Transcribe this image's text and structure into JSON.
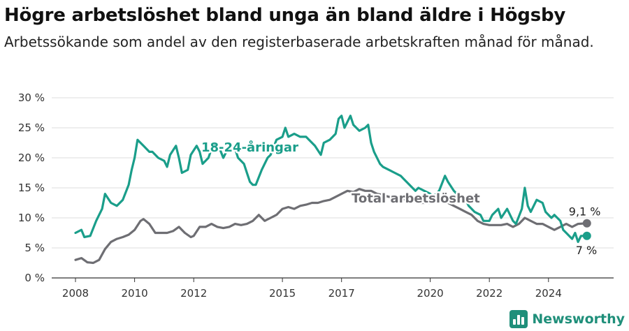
{
  "title": "Högre arbetslöshet bland unga än bland äldre i Högsby",
  "subtitle": "Arbetssökande som andel av den registerbaserade arbetskraften månad för månad.",
  "brand": {
    "name": "Newsworthy"
  },
  "colors": {
    "youth": "#1a9e8a",
    "total": "#6e6e73",
    "grid": "#dddddd",
    "axis": "#333333"
  },
  "chart_data": {
    "type": "line",
    "title": "Högre arbetslöshet bland unga än bland äldre i Högsby",
    "ylim": [
      0,
      30
    ],
    "xlim": [
      2008.0,
      2025.4
    ],
    "y_ticks": [
      0,
      5,
      10,
      15,
      20,
      25,
      30
    ],
    "y_tick_labels": [
      "0 %",
      "5 %",
      "10 %",
      "15 %",
      "20 %",
      "25 %",
      "30 %"
    ],
    "x_ticks": [
      2008,
      2010,
      2012,
      2015,
      2017,
      2020,
      2022,
      2024
    ],
    "x_tick_labels": [
      "2008",
      "2010",
      "2012",
      "2015",
      "2017",
      "2020",
      "2022",
      "2024"
    ],
    "grid": true,
    "series": [
      {
        "name": "18-24-åringar",
        "color": "#1a9e8a",
        "end_label": "7 %",
        "points": [
          [
            2008.0,
            7.5
          ],
          [
            2008.2,
            8.0
          ],
          [
            2008.3,
            6.8
          ],
          [
            2008.5,
            7.0
          ],
          [
            2008.7,
            9.5
          ],
          [
            2008.9,
            11.5
          ],
          [
            2009.0,
            14.0
          ],
          [
            2009.2,
            12.5
          ],
          [
            2009.4,
            12.0
          ],
          [
            2009.6,
            13.0
          ],
          [
            2009.8,
            15.5
          ],
          [
            2009.9,
            18.0
          ],
          [
            2010.0,
            20.0
          ],
          [
            2010.1,
            23.0
          ],
          [
            2010.3,
            22.0
          ],
          [
            2010.5,
            21.0
          ],
          [
            2010.6,
            21.0
          ],
          [
            2010.8,
            20.0
          ],
          [
            2011.0,
            19.5
          ],
          [
            2011.1,
            18.5
          ],
          [
            2011.2,
            20.5
          ],
          [
            2011.4,
            22.0
          ],
          [
            2011.5,
            20.0
          ],
          [
            2011.6,
            17.5
          ],
          [
            2011.8,
            18.0
          ],
          [
            2011.9,
            20.5
          ],
          [
            2012.1,
            22.0
          ],
          [
            2012.2,
            21.0
          ],
          [
            2012.3,
            19.0
          ],
          [
            2012.5,
            20.0
          ],
          [
            2012.6,
            21.5
          ],
          [
            2012.8,
            22.5
          ],
          [
            2013.0,
            20.0
          ],
          [
            2013.2,
            22.0
          ],
          [
            2013.4,
            21.5
          ],
          [
            2013.5,
            20.0
          ],
          [
            2013.7,
            19.0
          ],
          [
            2013.8,
            17.5
          ],
          [
            2013.9,
            16.0
          ],
          [
            2014.0,
            15.5
          ],
          [
            2014.1,
            15.5
          ],
          [
            2014.3,
            18.0
          ],
          [
            2014.5,
            20.0
          ],
          [
            2014.6,
            20.5
          ],
          [
            2014.8,
            23.0
          ],
          [
            2015.0,
            23.5
          ],
          [
            2015.1,
            25.0
          ],
          [
            2015.2,
            23.5
          ],
          [
            2015.4,
            24.0
          ],
          [
            2015.6,
            23.5
          ],
          [
            2015.8,
            23.5
          ],
          [
            2015.9,
            23.0
          ],
          [
            2016.1,
            22.0
          ],
          [
            2016.3,
            20.5
          ],
          [
            2016.4,
            22.5
          ],
          [
            2016.6,
            23.0
          ],
          [
            2016.8,
            24.0
          ],
          [
            2016.9,
            26.5
          ],
          [
            2017.0,
            27.0
          ],
          [
            2017.1,
            25.0
          ],
          [
            2017.3,
            27.0
          ],
          [
            2017.4,
            25.5
          ],
          [
            2017.6,
            24.5
          ],
          [
            2017.8,
            25.0
          ],
          [
            2017.9,
            25.5
          ],
          [
            2018.0,
            22.5
          ],
          [
            2018.1,
            21.0
          ],
          [
            2018.3,
            19.0
          ],
          [
            2018.4,
            18.5
          ],
          [
            2018.6,
            18.0
          ],
          [
            2018.8,
            17.5
          ],
          [
            2019.0,
            17.0
          ],
          [
            2019.1,
            16.5
          ],
          [
            2019.3,
            15.5
          ],
          [
            2019.5,
            14.5
          ],
          [
            2019.6,
            15.0
          ],
          [
            2019.8,
            14.5
          ],
          [
            2020.0,
            14.0
          ],
          [
            2020.1,
            13.5
          ],
          [
            2020.3,
            14.5
          ],
          [
            2020.5,
            17.0
          ],
          [
            2020.6,
            16.0
          ],
          [
            2020.8,
            14.5
          ],
          [
            2021.0,
            13.5
          ],
          [
            2021.2,
            13.0
          ],
          [
            2021.3,
            12.0
          ],
          [
            2021.5,
            11.0
          ],
          [
            2021.7,
            10.5
          ],
          [
            2021.8,
            9.5
          ],
          [
            2022.0,
            9.5
          ],
          [
            2022.1,
            10.5
          ],
          [
            2022.3,
            11.5
          ],
          [
            2022.4,
            10.0
          ],
          [
            2022.6,
            11.5
          ],
          [
            2022.8,
            9.5
          ],
          [
            2022.9,
            9.0
          ],
          [
            2023.1,
            11.5
          ],
          [
            2023.2,
            15.0
          ],
          [
            2023.3,
            12.0
          ],
          [
            2023.4,
            11.0
          ],
          [
            2023.6,
            13.0
          ],
          [
            2023.8,
            12.5
          ],
          [
            2023.9,
            11.0
          ],
          [
            2024.1,
            10.0
          ],
          [
            2024.2,
            10.5
          ],
          [
            2024.4,
            9.5
          ],
          [
            2024.5,
            8.0
          ],
          [
            2024.6,
            7.5
          ],
          [
            2024.8,
            6.5
          ],
          [
            2024.9,
            7.5
          ],
          [
            2025.0,
            6.0
          ],
          [
            2025.1,
            7.0
          ],
          [
            2025.3,
            7.0
          ]
        ]
      },
      {
        "name": "Total arbetslöshet",
        "color": "#6e6e73",
        "end_label": "9,1 %",
        "points": [
          [
            2008.0,
            3.0
          ],
          [
            2008.2,
            3.3
          ],
          [
            2008.4,
            2.6
          ],
          [
            2008.6,
            2.5
          ],
          [
            2008.8,
            3.0
          ],
          [
            2009.0,
            4.8
          ],
          [
            2009.2,
            6.0
          ],
          [
            2009.4,
            6.5
          ],
          [
            2009.6,
            6.8
          ],
          [
            2009.8,
            7.2
          ],
          [
            2010.0,
            8.0
          ],
          [
            2010.2,
            9.5
          ],
          [
            2010.3,
            9.8
          ],
          [
            2010.5,
            9.0
          ],
          [
            2010.7,
            7.5
          ],
          [
            2010.9,
            7.5
          ],
          [
            2011.1,
            7.5
          ],
          [
            2011.3,
            7.8
          ],
          [
            2011.5,
            8.5
          ],
          [
            2011.7,
            7.5
          ],
          [
            2011.9,
            6.8
          ],
          [
            2012.0,
            7.0
          ],
          [
            2012.2,
            8.5
          ],
          [
            2012.4,
            8.5
          ],
          [
            2012.6,
            9.0
          ],
          [
            2012.8,
            8.5
          ],
          [
            2013.0,
            8.3
          ],
          [
            2013.2,
            8.5
          ],
          [
            2013.4,
            9.0
          ],
          [
            2013.6,
            8.8
          ],
          [
            2013.8,
            9.0
          ],
          [
            2014.0,
            9.5
          ],
          [
            2014.2,
            10.5
          ],
          [
            2014.4,
            9.5
          ],
          [
            2014.6,
            10.0
          ],
          [
            2014.8,
            10.5
          ],
          [
            2015.0,
            11.5
          ],
          [
            2015.2,
            11.8
          ],
          [
            2015.4,
            11.5
          ],
          [
            2015.6,
            12.0
          ],
          [
            2015.8,
            12.2
          ],
          [
            2016.0,
            12.5
          ],
          [
            2016.2,
            12.5
          ],
          [
            2016.4,
            12.8
          ],
          [
            2016.6,
            13.0
          ],
          [
            2016.8,
            13.5
          ],
          [
            2017.0,
            14.0
          ],
          [
            2017.2,
            14.5
          ],
          [
            2017.4,
            14.3
          ],
          [
            2017.6,
            14.8
          ],
          [
            2017.8,
            14.5
          ],
          [
            2018.0,
            14.5
          ],
          [
            2018.2,
            14.0
          ],
          [
            2018.4,
            13.8
          ],
          [
            2018.6,
            13.5
          ],
          [
            2018.8,
            13.5
          ],
          [
            2019.0,
            13.2
          ],
          [
            2019.2,
            13.0
          ],
          [
            2019.4,
            12.8
          ],
          [
            2019.6,
            12.5
          ],
          [
            2019.8,
            12.5
          ],
          [
            2020.0,
            12.5
          ],
          [
            2020.2,
            12.8
          ],
          [
            2020.4,
            13.0
          ],
          [
            2020.6,
            12.5
          ],
          [
            2020.8,
            12.0
          ],
          [
            2021.0,
            11.5
          ],
          [
            2021.2,
            11.0
          ],
          [
            2021.4,
            10.5
          ],
          [
            2021.6,
            9.5
          ],
          [
            2021.8,
            9.0
          ],
          [
            2022.0,
            8.8
          ],
          [
            2022.2,
            8.8
          ],
          [
            2022.4,
            8.8
          ],
          [
            2022.6,
            9.0
          ],
          [
            2022.8,
            8.5
          ],
          [
            2023.0,
            9.0
          ],
          [
            2023.2,
            10.0
          ],
          [
            2023.4,
            9.5
          ],
          [
            2023.6,
            9.0
          ],
          [
            2023.8,
            9.0
          ],
          [
            2024.0,
            8.5
          ],
          [
            2024.2,
            8.0
          ],
          [
            2024.4,
            8.5
          ],
          [
            2024.6,
            9.0
          ],
          [
            2024.8,
            8.5
          ],
          [
            2025.0,
            9.0
          ],
          [
            2025.3,
            9.1
          ]
        ]
      }
    ]
  }
}
